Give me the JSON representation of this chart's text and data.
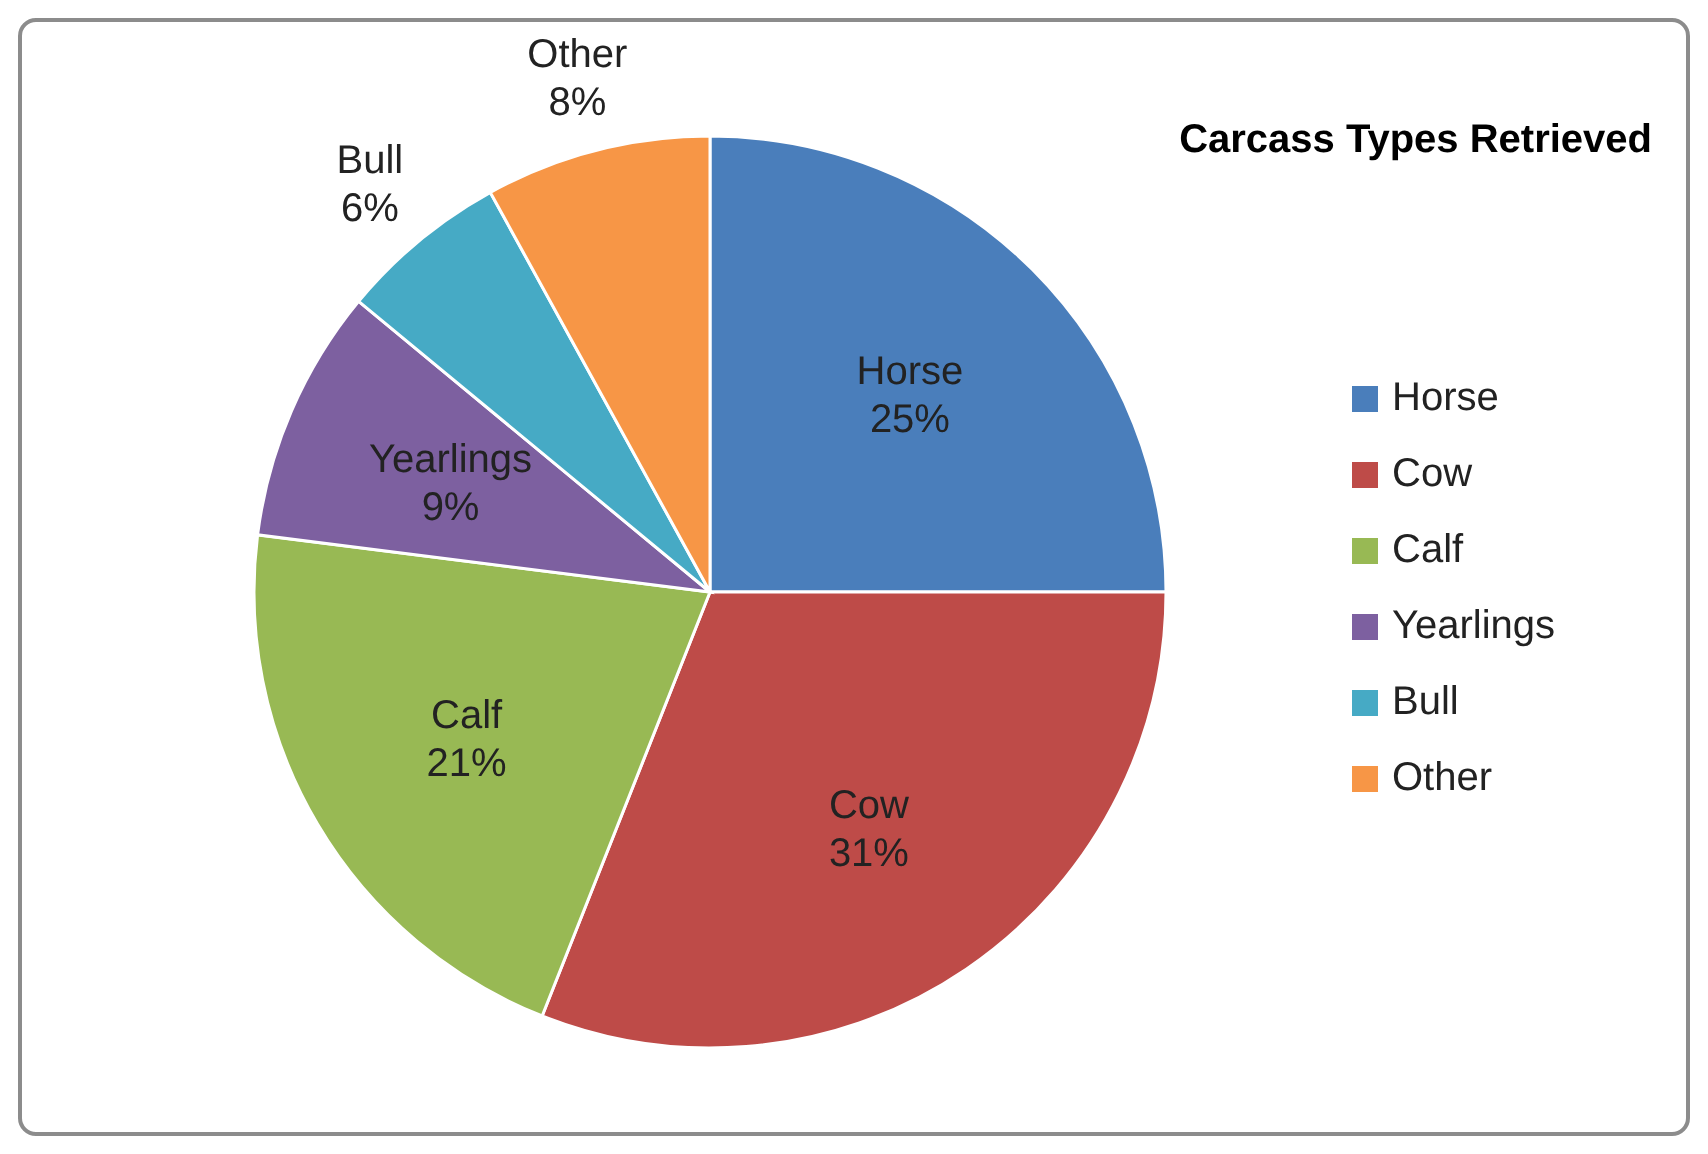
{
  "chart_data": {
    "type": "pie",
    "title": "Carcass Types Retrieved",
    "categories": [
      "Horse",
      "Cow",
      "Calf",
      "Yearlings",
      "Bull",
      "Other"
    ],
    "values": [
      25,
      31,
      21,
      9,
      6,
      8
    ],
    "value_labels": [
      "25%",
      "31%",
      "21%",
      "9%",
      "6%",
      "8%"
    ],
    "colors": [
      "#4a7ebb",
      "#be4b48",
      "#98b954",
      "#7d60a0",
      "#46aac5",
      "#f79646"
    ],
    "legend": "right"
  }
}
